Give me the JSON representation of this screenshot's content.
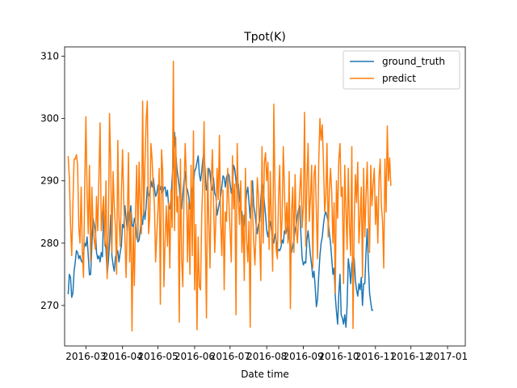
{
  "chart_data": {
    "type": "line",
    "title": "Tpot(K)",
    "xlabel": "Date time",
    "ylabel": "",
    "x_ticks": [
      "2016-03",
      "2016-04",
      "2016-05",
      "2016-06",
      "2016-07",
      "2016-08",
      "2016-09",
      "2016-10",
      "2016-11",
      "2016-12",
      "2017-01"
    ],
    "y_ticks": [
      270,
      280,
      290,
      300,
      310
    ],
    "xlim": [
      "2016-02-12",
      "2017-01-16"
    ],
    "ylim": [
      263.5,
      311.5
    ],
    "legend_position": "top-right",
    "series": [
      {
        "name": "ground_truth",
        "color": "#1f77b4",
        "x_start": "2016-02-15",
        "x_step_days": 1,
        "values": [
          271.8,
          275.0,
          274.5,
          271.3,
          272.0,
          275.5,
          277.0,
          278.8,
          278.5,
          277.5,
          278.0,
          277.2,
          276.9,
          278.5,
          280.0,
          279.5,
          281.0,
          278.0,
          274.9,
          275.0,
          279.5,
          284.0,
          283.0,
          282.0,
          278.5,
          277.5,
          278.0,
          277.0,
          278.5,
          277.8,
          285.5,
          280.5,
          279.0,
          275.0,
          277.0,
          280.0,
          284.5,
          278.0,
          276.5,
          275.5,
          277.8,
          278.3,
          278.8,
          277.0,
          278.5,
          279.5,
          283.0,
          282.5,
          286.0,
          284.0,
          282.0,
          285.0,
          283.5,
          286.0,
          283.0,
          282.5,
          284.0,
          283.2,
          281.0,
          280.2,
          280.5,
          282.0,
          284.0,
          283.0,
          285.5,
          283.8,
          286.0,
          289.0,
          287.5,
          288.0,
          290.0,
          289.0,
          290.5,
          288.8,
          287.5,
          288.0,
          289.3,
          289.5,
          288.6,
          289.2,
          288.0,
          288.9,
          289.0,
          287.5,
          288.5,
          286.0,
          285.5,
          287.0,
          290.5,
          293.0,
          297.8,
          294.5,
          292.0,
          290.5,
          289.0,
          286.0,
          285.5,
          288.0,
          290.0,
          291.5,
          289.0,
          288.5,
          287.5,
          285.5,
          286.5,
          288.5,
          289.5,
          291.5,
          292.0,
          293.0,
          294.0,
          291.0,
          290.0,
          291.5,
          293.5,
          294.8,
          291.0,
          288.5,
          289.5,
          292.0,
          291.5,
          289.0,
          288.5,
          290.5,
          288.0,
          287.5,
          284.5,
          285.5,
          286.5,
          287.5,
          289.0,
          290.8,
          290.5,
          289.0,
          290.5,
          291.2,
          291.0,
          289.5,
          288.0,
          289.5,
          292.5,
          291.8,
          290.0,
          288.0,
          289.5,
          287.0,
          285.5,
          285.0,
          282.0,
          284.0,
          285.5,
          288.0,
          289.0,
          286.5,
          284.0,
          287.5,
          290.0,
          286.0,
          284.8,
          283.0,
          281.5,
          283.0,
          283.5,
          287.0,
          289.8,
          289.0,
          286.5,
          284.5,
          282.0,
          281.0,
          282.5,
          283.5,
          282.0,
          280.8,
          280.0,
          281.5,
          280.5,
          278.5,
          279.0,
          278.8,
          279.3,
          280.5,
          280.0,
          282.0,
          281.5,
          282.0,
          283.5,
          281.0,
          279.5,
          278.5,
          279.5,
          280.5,
          282.0,
          283.0,
          284.5,
          285.5,
          286.0,
          281.0,
          277.5,
          276.5,
          277.0,
          276.8,
          280.5,
          282.0,
          280.0,
          278.0,
          276.5,
          274.5,
          275.5,
          273.0,
          269.8,
          271.0,
          274.8,
          278.0,
          280.0,
          281.0,
          283.0,
          284.5,
          285.0,
          284.3,
          283.5,
          281.5,
          280.0,
          277.5,
          275.0,
          276.0,
          271.5,
          269.0,
          267.0,
          272.0,
          275.0,
          268.5,
          268.0,
          267.0,
          268.5,
          266.5,
          270.0,
          277.5,
          276.0,
          273.5,
          276.5,
          278.0,
          277.5,
          274.0,
          272.5,
          271.5,
          273.5,
          272.5,
          274.5,
          270.0,
          273.5,
          273.5,
          278.5,
          282.3,
          276.5,
          272.0,
          270.5,
          269.2,
          269.3
        ]
      },
      {
        "name": "predict",
        "color": "#ff7f0e",
        "x_start": "2016-02-15",
        "x_step_days": 1,
        "values": [
          294.0,
          290.5,
          283.0,
          278.0,
          286.0,
          293.5,
          293.5,
          294.2,
          292.5,
          282.5,
          280.0,
          289.0,
          278.5,
          274.5,
          289.0,
          300.3,
          288.0,
          281.5,
          292.5,
          277.0,
          289.0,
          283.0,
          280.5,
          279.0,
          287.5,
          282.0,
          290.5,
          299.3,
          282.0,
          285.0,
          287.5,
          279.5,
          290.0,
          274.3,
          282.0,
          300.8,
          292.5,
          278.5,
          291.5,
          286.0,
          282.5,
          275.0,
          296.5,
          284.0,
          279.5,
          288.0,
          295.0,
          287.0,
          281.0,
          274.5,
          283.0,
          294.5,
          277.0,
          285.0,
          265.9,
          282.5,
          273.2,
          285.0,
          292.5,
          280.5,
          293.0,
          286.0,
          281.5,
          302.8,
          284.5,
          293.0,
          300.0,
          302.8,
          281.5,
          284.0,
          296.0,
          293.5,
          289.0,
          286.0,
          277.0,
          281.5,
          285.5,
          292.0,
          270.2,
          295.0,
          291.5,
          273.0,
          280.5,
          286.0,
          279.5,
          286.5,
          276.0,
          288.5,
          282.5,
          309.2,
          282.0,
          297.0,
          285.0,
          287.5,
          267.3,
          293.5,
          277.5,
          273.0,
          288.0,
          296.0,
          290.5,
          277.0,
          286.5,
          275.0,
          292.5,
          278.0,
          298.0,
          272.5,
          283.0,
          266.1,
          281.0,
          273.0,
          272.5,
          284.5,
          290.0,
          299.5,
          282.0,
          268.0,
          292.0,
          283.5,
          276.0,
          289.5,
          295.0,
          286.5,
          278.5,
          284.0,
          292.0,
          287.0,
          297.3,
          283.5,
          278.0,
          288.5,
          272.5,
          285.0,
          283.5,
          292.0,
          286.5,
          282.0,
          277.0,
          294.0,
          285.5,
          289.5,
          268.5,
          296.0,
          287.0,
          283.0,
          290.0,
          278.5,
          284.5,
          274.0,
          292.0,
          280.5,
          277.0,
          283.5,
          266.5,
          290.0,
          285.5,
          280.0,
          276.5,
          282.0,
          290.5,
          287.5,
          280.5,
          274.0,
          295.5,
          280.0,
          293.0,
          294.5,
          290.0,
          293.0,
          279.0,
          291.5,
          283.5,
          275.5,
          302.3,
          288.0,
          279.0,
          277.5,
          287.5,
          292.5,
          280.0,
          284.0,
          295.5,
          288.5,
          281.5,
          286.5,
          280.0,
          291.5,
          269.5,
          285.0,
          289.0,
          278.5,
          291.0,
          282.5,
          280.0,
          284.5,
          288.5,
          292.0,
          282.5,
          286.0,
          301.0,
          279.5,
          290.0,
          296.0,
          283.5,
          287.5,
          292.5,
          276.0,
          291.0,
          292.5,
          285.0,
          277.5,
          293.0,
          300.0,
          296.5,
          299.0,
          293.0,
          285.0,
          287.5,
          296.0,
          281.0,
          288.5,
          292.0,
          288.0,
          280.0,
          286.5,
          272.0,
          290.0,
          284.0,
          293.5,
          296.0,
          287.5,
          289.0,
          273.5,
          292.5,
          285.5,
          279.0,
          292.0,
          283.0,
          278.0,
          295.5,
          266.3,
          283.0,
          291.0,
          286.5,
          293.0,
          280.0,
          284.0,
          289.0,
          274.5,
          292.0,
          281.0,
          287.5,
          293.0,
          284.5,
          278.5,
          292.5,
          286.0,
          289.5,
          292.0,
          283.0,
          287.5,
          280.0,
          290.5,
          293.5,
          286.0,
          283.5,
          276.0,
          293.5,
          285.0,
          298.8,
          290.0,
          293.7,
          289.2
        ]
      }
    ]
  }
}
